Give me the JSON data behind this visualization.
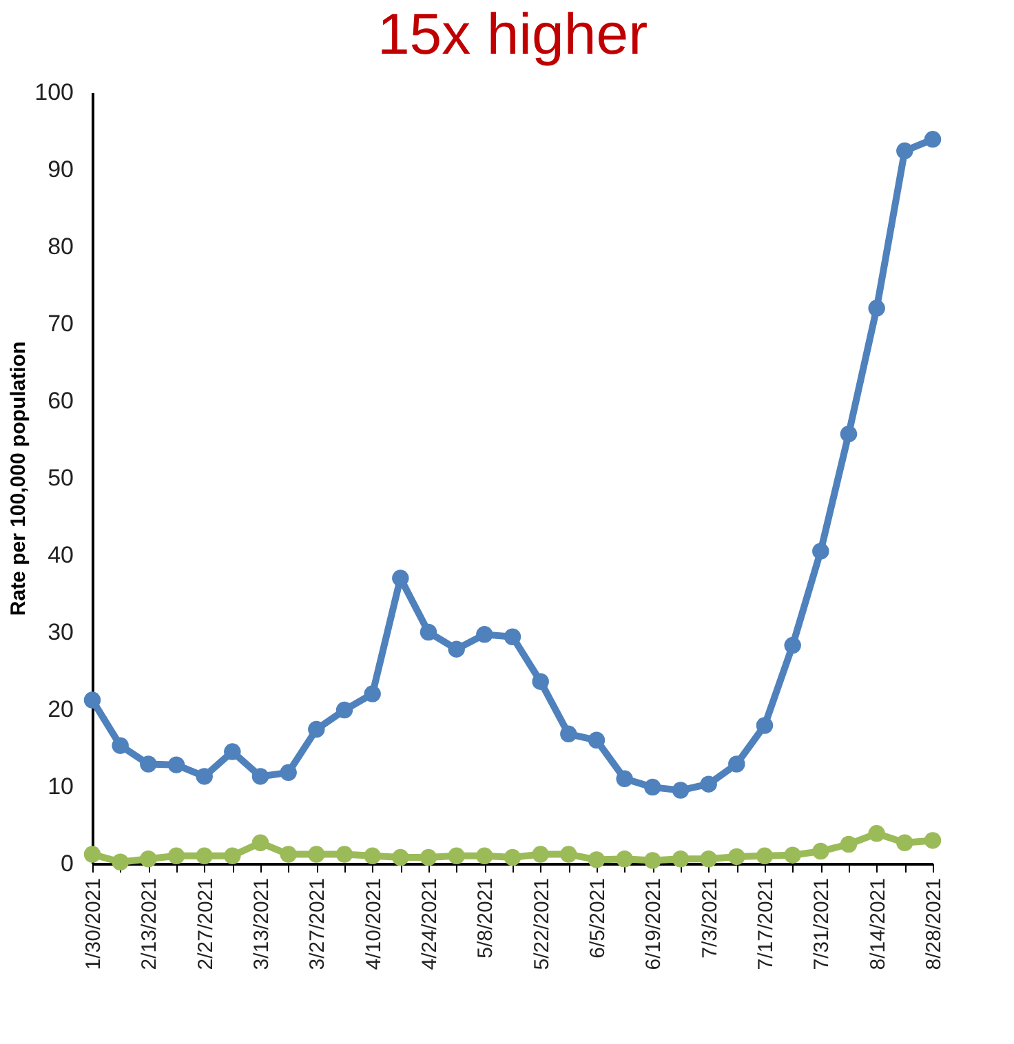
{
  "chart_data": {
    "type": "line",
    "title": "15x higher",
    "ylabel": "Rate per 100,000 population",
    "categories": [
      "1/30/2021",
      null,
      "2/13/2021",
      null,
      "2/27/2021",
      null,
      "3/13/2021",
      null,
      "3/27/2021",
      null,
      "4/10/2021",
      null,
      "4/24/2021",
      null,
      "5/8/2021",
      null,
      "5/22/2021",
      null,
      "6/5/2021",
      null,
      "6/19/2021",
      null,
      "7/3/2021",
      null,
      "7/17/2021",
      null,
      "7/31/2021",
      null,
      "8/14/2021",
      null,
      "8/28/2021"
    ],
    "series": [
      {
        "color": "#4f81bd",
        "values": [
          21.2,
          15.3,
          12.9,
          12.8,
          11.3,
          14.5,
          11.3,
          11.8,
          17.4,
          19.9,
          22.0,
          37.0,
          30.0,
          27.8,
          29.7,
          29.4,
          23.6,
          16.8,
          16.0,
          11.0,
          9.9,
          9.5,
          10.3,
          12.9,
          17.9,
          28.3,
          40.5,
          55.7,
          72.0,
          92.4,
          93.9
        ]
      },
      {
        "color": "#9bbb59",
        "values": [
          1.2,
          0.2,
          0.6,
          1.0,
          1.0,
          1.0,
          2.7,
          1.2,
          1.2,
          1.2,
          1.0,
          0.8,
          0.8,
          1.0,
          1.0,
          0.8,
          1.2,
          1.2,
          0.5,
          0.6,
          0.4,
          0.6,
          0.6,
          0.9,
          1.0,
          1.1,
          1.6,
          2.5,
          3.9,
          2.7,
          3.0
        ]
      }
    ],
    "ylim": [
      0,
      100
    ],
    "yticks": [
      0,
      10,
      20,
      30,
      40,
      50,
      60,
      70,
      80,
      90,
      100
    ],
    "grid": false,
    "marker": "circle",
    "line_style": "solid"
  }
}
